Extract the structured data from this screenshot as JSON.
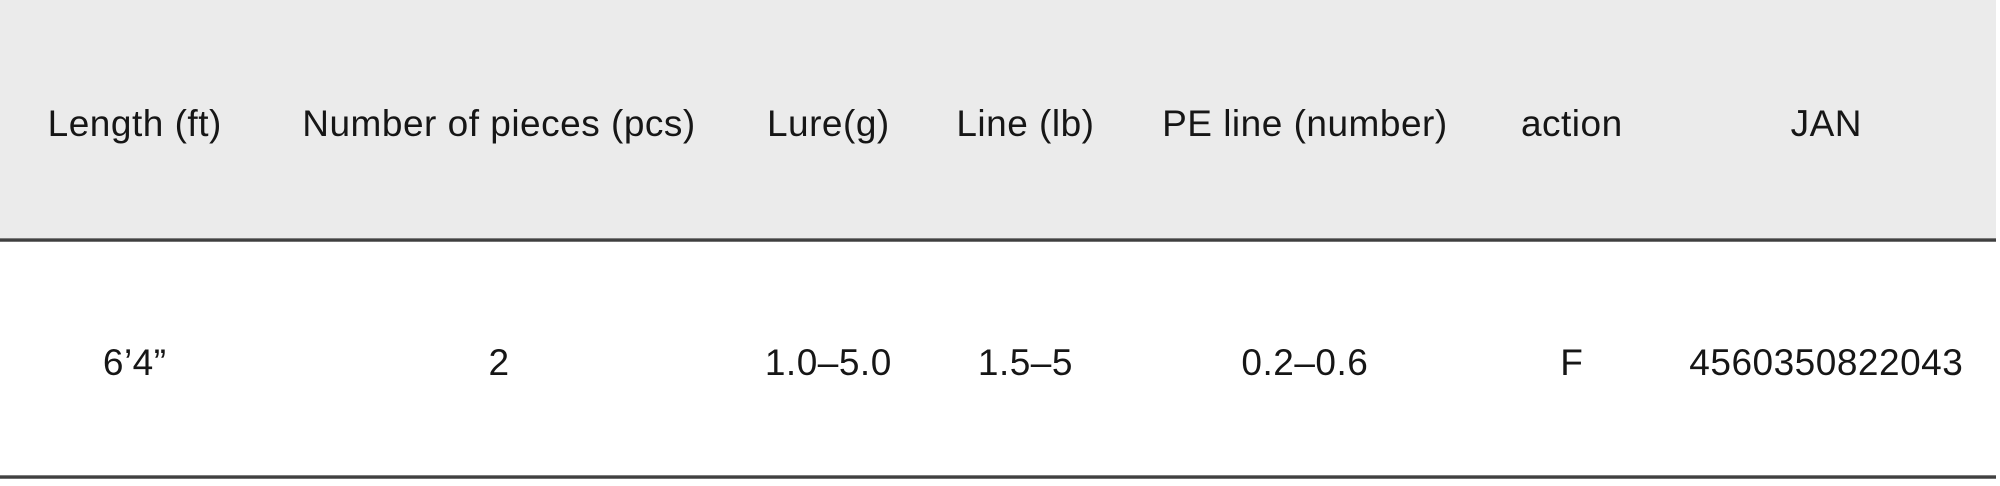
{
  "colors": {
    "header_background": "#ebebeb",
    "row_background": "#ffffff",
    "divider_line": "#3e3e3e",
    "text": "#161616"
  },
  "table": {
    "headers": [
      "Length (ft)",
      "Number of pieces (pcs)",
      "Lure(g)",
      "Line (lb)",
      "PE line (number)",
      "action",
      "JAN"
    ],
    "row": [
      "6’4”",
      "2",
      "1.0–5.0",
      "1.5–5",
      "0.2–0.6",
      "F",
      "4560350822043"
    ]
  }
}
